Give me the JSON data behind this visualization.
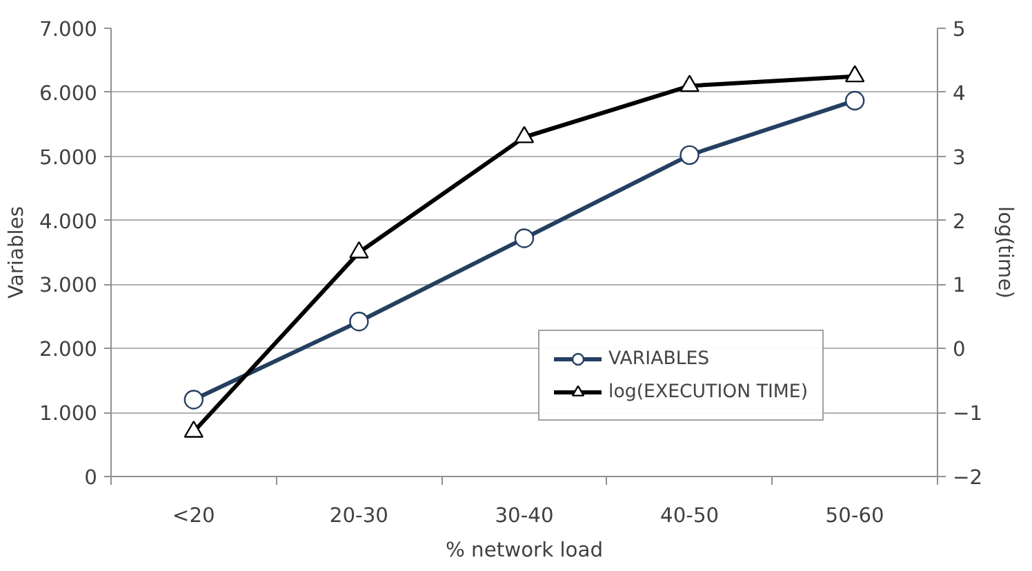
{
  "chart_data": {
    "type": "line",
    "xlabel": "% network load",
    "ylabel": "Variables",
    "y2label": "log(time)",
    "categories": [
      "<20",
      "20-30",
      "30-40",
      "40-50",
      "50-60"
    ],
    "series": [
      {
        "name": "VARIABLES",
        "color": "#243f60",
        "values": [
          1200,
          2420,
          3720,
          5020,
          5870
        ],
        "marker": "circle"
      },
      {
        "name": "log(EXECUTION TIME)",
        "color": "#000000",
        "values": [
          -1.3,
          1.5,
          3.3,
          4.1,
          4.25
        ],
        "marker": "triangle",
        "axis": "y2"
      }
    ],
    "ylim": [
      0,
      7000
    ],
    "yticks": [
      {
        "value": 0,
        "label": "0"
      },
      {
        "value": 1000,
        "label": "1.000"
      },
      {
        "value": 2000,
        "label": "2.000"
      },
      {
        "value": 3000,
        "label": "3.000"
      },
      {
        "value": 4000,
        "label": "4.000"
      },
      {
        "value": 5000,
        "label": "5.000"
      },
      {
        "value": 6000,
        "label": "6.000"
      },
      {
        "value": 7000,
        "label": "7.000"
      }
    ],
    "y2lim": [
      -2,
      5
    ],
    "y2ticks": [
      -2,
      -1,
      0,
      1,
      2,
      3,
      4,
      5
    ],
    "grid": "y",
    "legend": "bottom right"
  }
}
